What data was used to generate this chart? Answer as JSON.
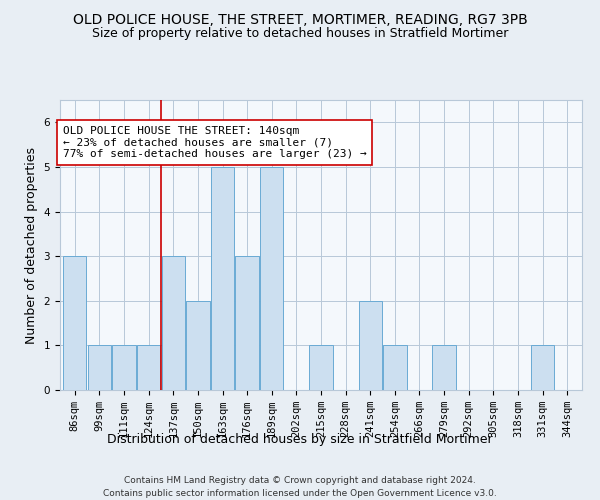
{
  "title": "OLD POLICE HOUSE, THE STREET, MORTIMER, READING, RG7 3PB",
  "subtitle": "Size of property relative to detached houses in Stratfield Mortimer",
  "xlabel": "Distribution of detached houses by size in Stratfield Mortimer",
  "ylabel": "Number of detached properties",
  "categories": [
    "86sqm",
    "99sqm",
    "111sqm",
    "124sqm",
    "137sqm",
    "150sqm",
    "163sqm",
    "176sqm",
    "189sqm",
    "202sqm",
    "215sqm",
    "228sqm",
    "241sqm",
    "254sqm",
    "266sqm",
    "279sqm",
    "292sqm",
    "305sqm",
    "318sqm",
    "331sqm",
    "344sqm"
  ],
  "values": [
    3,
    1,
    1,
    1,
    3,
    2,
    5,
    3,
    5,
    0,
    1,
    0,
    2,
    1,
    0,
    1,
    0,
    0,
    0,
    1,
    0
  ],
  "bar_color": "#ccdff0",
  "bar_edge_color": "#6aaad4",
  "subject_line_color": "#cc0000",
  "subject_line_index": 4,
  "annotation_text": "OLD POLICE HOUSE THE STREET: 140sqm\n← 23% of detached houses are smaller (7)\n77% of semi-detached houses are larger (23) →",
  "ylim": [
    0,
    6.5
  ],
  "yticks": [
    0,
    1,
    2,
    3,
    4,
    5,
    6
  ],
  "footnote1": "Contains HM Land Registry data © Crown copyright and database right 2024.",
  "footnote2": "Contains public sector information licensed under the Open Government Licence v3.0.",
  "background_color": "#e8eef4",
  "plot_background": "#f4f8fc",
  "grid_color": "#b8c8d8",
  "title_fontsize": 10,
  "subtitle_fontsize": 9,
  "annotation_fontsize": 8,
  "ylabel_fontsize": 9,
  "xlabel_fontsize": 9,
  "tick_fontsize": 7.5,
  "footnote_fontsize": 6.5
}
